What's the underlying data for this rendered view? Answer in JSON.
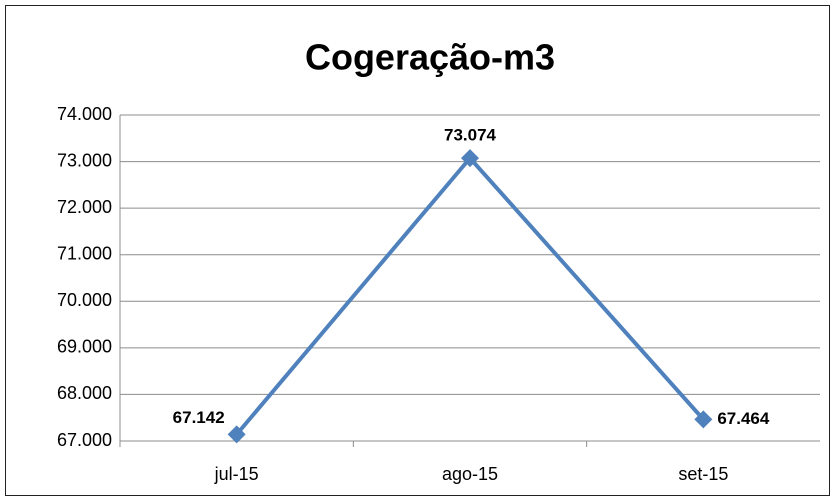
{
  "chart_data": {
    "type": "line",
    "title": "Cogeração-m3",
    "categories": [
      "jul-15",
      "ago-15",
      "set-15"
    ],
    "series": [
      {
        "name": "Cogeração-m3",
        "color": "#4f81bd",
        "values": [
          67142,
          73074,
          67464
        ],
        "value_labels": [
          "67.142",
          "73.074",
          "67.464"
        ]
      }
    ],
    "ylim": [
      67000,
      74000
    ],
    "yticks": [
      {
        "value": 67000,
        "label": "67.000"
      },
      {
        "value": 68000,
        "label": "68.000"
      },
      {
        "value": 69000,
        "label": "69.000"
      },
      {
        "value": 70000,
        "label": "70.000"
      },
      {
        "value": 71000,
        "label": "71.000"
      },
      {
        "value": 72000,
        "label": "72.000"
      },
      {
        "value": 73000,
        "label": "73.000"
      },
      {
        "value": 74000,
        "label": "74.000"
      }
    ],
    "grid": true
  }
}
